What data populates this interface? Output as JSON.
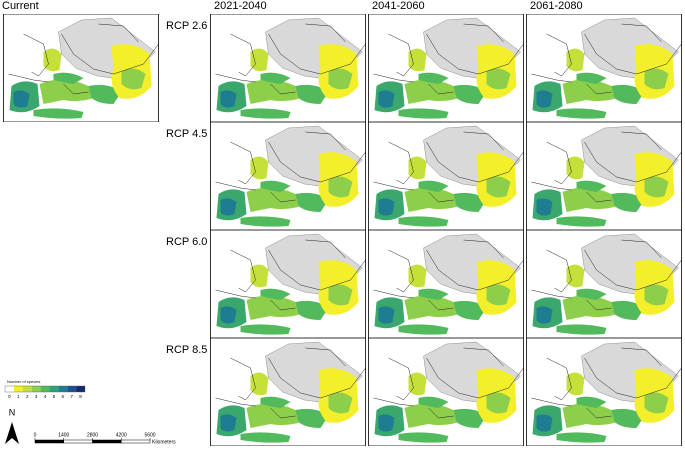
{
  "current_label": "Current",
  "columns": [
    "2021-2040",
    "2041-2060",
    "2061-2080"
  ],
  "rows": [
    "RCP 2.6",
    "RCP 4.5",
    "RCP 6.0",
    "RCP 8.5"
  ],
  "legend": {
    "title": "Number of species",
    "ticks": [
      0,
      1,
      2,
      3,
      4,
      5,
      6,
      7,
      8
    ],
    "colors": [
      "#ffffff",
      "#f3ef2a",
      "#c5e03a",
      "#8dcf4a",
      "#52b95c",
      "#2ea27a",
      "#1f7d92",
      "#1f4f95",
      "#172a70"
    ]
  },
  "scale": {
    "ticks": [
      0,
      1400,
      2800,
      4200,
      5600
    ],
    "unit": "Kilometers"
  },
  "north": "N"
}
